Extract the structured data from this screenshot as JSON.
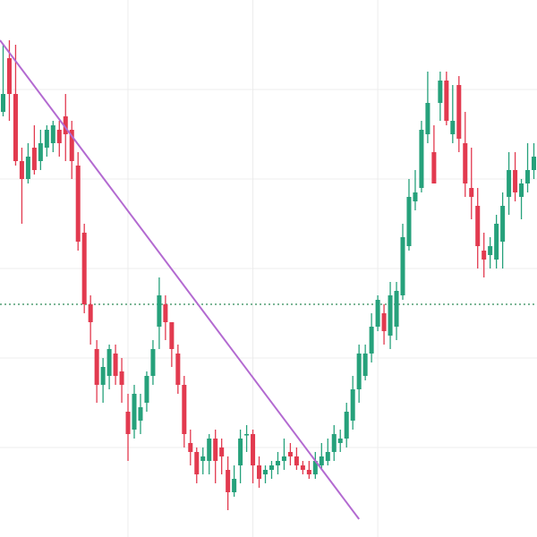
{
  "chart_data": {
    "type": "candlestick",
    "title": "",
    "xlabel": "",
    "ylabel": "",
    "ylim": [
      0,
      600
    ],
    "grid": true,
    "colors": {
      "up": "#26a17b",
      "down": "#e23a4f",
      "trendline": "#b36ad1",
      "level": "#2e8b57",
      "grid": "#ececec",
      "background": "#ffffff"
    },
    "grid_y": [
      100,
      200,
      300,
      400,
      500
    ],
    "grid_x": [
      20,
      40,
      60
    ],
    "trendline": {
      "from": [
        0,
        555
      ],
      "to": [
        57,
        20
      ]
    },
    "horizontal_level": 260,
    "candles": [
      [
        475,
        495,
        550,
        470
      ],
      [
        535,
        495,
        555,
        465
      ],
      [
        495,
        420,
        550,
        415
      ],
      [
        420,
        400,
        435,
        350
      ],
      [
        400,
        425,
        440,
        395
      ],
      [
        435,
        410,
        460,
        405
      ],
      [
        420,
        440,
        455,
        410
      ],
      [
        435,
        455,
        460,
        425
      ],
      [
        440,
        460,
        465,
        430
      ],
      [
        455,
        440,
        465,
        425
      ],
      [
        470,
        450,
        495,
        420
      ],
      [
        455,
        420,
        465,
        400
      ],
      [
        415,
        330,
        430,
        320
      ],
      [
        340,
        260,
        350,
        250
      ],
      [
        260,
        240,
        270,
        215
      ],
      [
        210,
        170,
        220,
        150
      ],
      [
        170,
        190,
        200,
        150
      ],
      [
        180,
        210,
        215,
        165
      ],
      [
        205,
        180,
        215,
        170
      ],
      [
        185,
        170,
        200,
        150
      ],
      [
        140,
        115,
        160,
        85
      ],
      [
        120,
        160,
        170,
        110
      ],
      [
        130,
        145,
        160,
        115
      ],
      [
        150,
        180,
        185,
        140
      ],
      [
        180,
        210,
        220,
        170
      ],
      [
        235,
        270,
        290,
        210
      ],
      [
        260,
        240,
        270,
        220
      ],
      [
        240,
        210,
        240,
        190
      ],
      [
        205,
        170,
        215,
        160
      ],
      [
        170,
        115,
        180,
        100
      ],
      [
        105,
        95,
        120,
        80
      ],
      [
        95,
        70,
        100,
        60
      ],
      [
        85,
        90,
        100,
        70
      ],
      [
        85,
        110,
        115,
        70
      ],
      [
        110,
        85,
        120,
        60
      ],
      [
        100,
        90,
        110,
        70
      ],
      [
        75,
        50,
        90,
        30
      ],
      [
        50,
        65,
        80,
        45
      ],
      [
        80,
        110,
        120,
        60
      ],
      [
        115,
        115,
        125,
        95
      ],
      [
        115,
        80,
        120,
        60
      ],
      [
        80,
        65,
        90,
        55
      ],
      [
        70,
        75,
        80,
        60
      ],
      [
        75,
        80,
        85,
        65
      ],
      [
        80,
        85,
        95,
        70
      ],
      [
        85,
        90,
        110,
        75
      ],
      [
        95,
        90,
        105,
        80
      ],
      [
        90,
        80,
        100,
        75
      ],
      [
        80,
        75,
        85,
        70
      ],
      [
        75,
        70,
        85,
        65
      ],
      [
        70,
        85,
        95,
        65
      ],
      [
        80,
        90,
        105,
        75
      ],
      [
        85,
        95,
        110,
        80
      ],
      [
        95,
        115,
        125,
        85
      ],
      [
        105,
        110,
        120,
        95
      ],
      [
        110,
        140,
        150,
        100
      ],
      [
        130,
        165,
        180,
        120
      ],
      [
        165,
        205,
        215,
        150
      ],
      [
        180,
        205,
        215,
        175
      ],
      [
        205,
        235,
        250,
        195
      ],
      [
        235,
        265,
        270,
        230
      ],
      [
        250,
        230,
        260,
        215
      ],
      [
        225,
        270,
        285,
        210
      ],
      [
        235,
        275,
        285,
        220
      ],
      [
        270,
        335,
        350,
        265
      ],
      [
        325,
        380,
        400,
        320
      ],
      [
        375,
        385,
        410,
        365
      ],
      [
        390,
        455,
        465,
        385
      ],
      [
        450,
        485,
        520,
        440
      ],
      [
        430,
        395,
        460,
        400
      ],
      [
        485,
        510,
        520,
        465
      ],
      [
        510,
        465,
        520,
        460
      ],
      [
        450,
        465,
        505,
        440
      ],
      [
        505,
        445,
        515,
        430
      ],
      [
        440,
        395,
        475,
        380
      ],
      [
        390,
        380,
        435,
        355
      ],
      [
        370,
        325,
        390,
        300
      ],
      [
        320,
        310,
        340,
        290
      ],
      [
        315,
        325,
        335,
        300
      ],
      [
        310,
        350,
        360,
        300
      ],
      [
        330,
        370,
        385,
        300
      ],
      [
        380,
        410,
        430,
        360
      ],
      [
        410,
        385,
        430,
        375
      ],
      [
        380,
        395,
        400,
        355
      ],
      [
        395,
        410,
        440,
        385
      ],
      [
        410,
        425,
        440,
        400
      ]
    ]
  }
}
